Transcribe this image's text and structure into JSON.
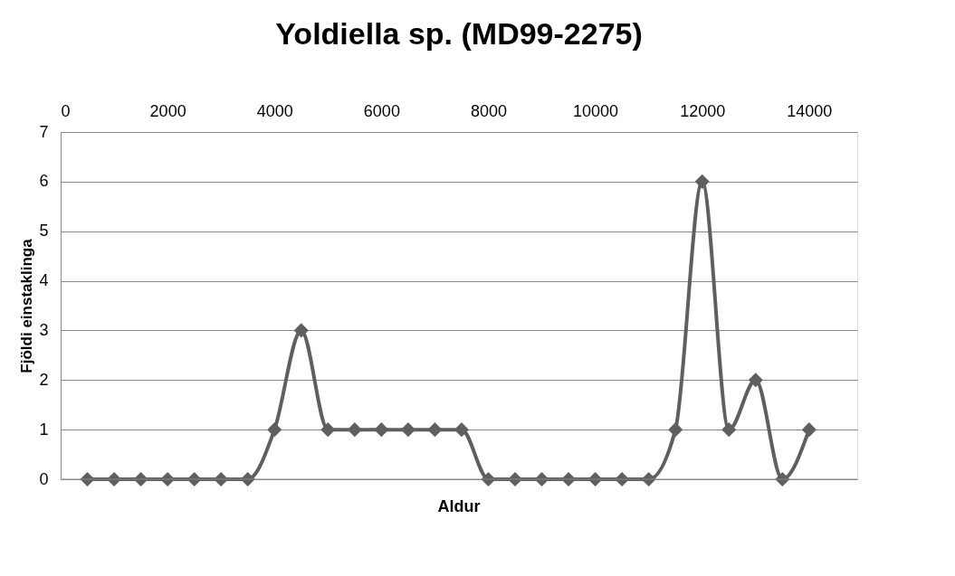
{
  "chart_data": {
    "type": "line",
    "title": "Yoldiella sp. (MD99-2275)",
    "xlabel": "Aldur",
    "ylabel": "Fjöldi einstaklinga",
    "x": [
      500,
      1000,
      1500,
      2000,
      2500,
      3000,
      3500,
      4000,
      4500,
      5000,
      5500,
      6000,
      6500,
      7000,
      7500,
      8000,
      8500,
      9000,
      9500,
      10000,
      10500,
      11000,
      11500,
      12000,
      12500,
      13000,
      13500,
      14000
    ],
    "series": [
      {
        "color": "#5f5f5f",
        "values": [
          0,
          0,
          0,
          0,
          0,
          0,
          0,
          1,
          3,
          1,
          1,
          1,
          1,
          1,
          1,
          0,
          0,
          0,
          0,
          0,
          0,
          0,
          1,
          6,
          1,
          2,
          0,
          1
        ]
      }
    ],
    "xlim": [
      0,
      14900
    ],
    "xticks": [
      0,
      2000,
      4000,
      6000,
      8000,
      10000,
      12000,
      14000
    ],
    "ylim": [
      0,
      7
    ],
    "yticks": [
      0,
      1,
      2,
      3,
      4,
      5,
      6,
      7
    ],
    "grid": "y",
    "marker": "diamond",
    "line_style": "solid"
  }
}
